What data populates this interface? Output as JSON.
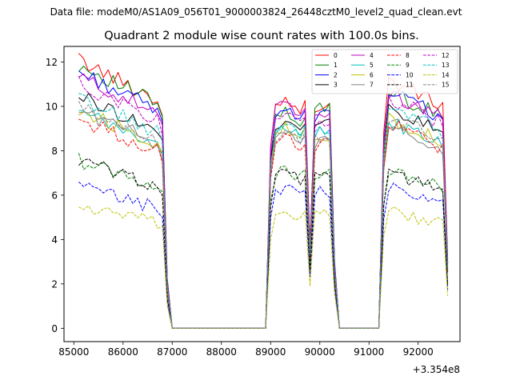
{
  "header": {
    "data_file": "Data file: modeM0/AS1A09_056T01_9000003824_26448cztM0_level2_quad_clean.evt"
  },
  "chart_data": {
    "type": "line",
    "title": "Quadrant 2 module wise count rates with 100.0s bins.",
    "xlabel": "",
    "ylabel": "",
    "x_offset_label": "+3.354e8",
    "xlim": [
      84800,
      92850
    ],
    "ylim": [
      -0.6,
      12.7
    ],
    "x_ticks": [
      85000,
      86000,
      87000,
      88000,
      89000,
      90000,
      91000,
      92000
    ],
    "y_ticks": [
      0,
      2,
      4,
      6,
      8,
      10,
      12
    ],
    "x_tick_labels": [
      "85000",
      "86000",
      "87000",
      "88000",
      "89000",
      "90000",
      "91000",
      "92000"
    ],
    "y_tick_labels": [
      "0",
      "2",
      "4",
      "6",
      "8",
      "10",
      "12"
    ],
    "grid": false,
    "legend": {
      "placement": "top-right",
      "columns": 4
    },
    "x_start": 85100,
    "x_step": 100,
    "n_points": 76,
    "series": [
      {
        "name": "0",
        "color": "#ff0000",
        "dash": "solid",
        "seg1": 11.2,
        "seg2": 10.0,
        "seg3": 10.1,
        "seg4": 10.4
      },
      {
        "name": "1",
        "color": "#008000",
        "dash": "solid",
        "seg1": 11.0,
        "seg2": 9.4,
        "seg3": 9.9,
        "seg4": 9.9
      },
      {
        "name": "2",
        "color": "#0000ff",
        "dash": "solid",
        "seg1": 10.7,
        "seg2": 9.5,
        "seg3": 9.8,
        "seg4": 9.9
      },
      {
        "name": "3",
        "color": "#000000",
        "dash": "solid",
        "seg1": 9.7,
        "seg2": 9.1,
        "seg3": 9.2,
        "seg4": 9.2
      },
      {
        "name": "4",
        "color": "#bf00bf",
        "dash": "solid",
        "seg1": 10.5,
        "seg2": 9.8,
        "seg3": 9.6,
        "seg4": 9.8
      },
      {
        "name": "5",
        "color": "#00bfbf",
        "dash": "solid",
        "seg1": 9.0,
        "seg2": 8.8,
        "seg3": 8.9,
        "seg4": 8.6
      },
      {
        "name": "6",
        "color": "#bfbf00",
        "dash": "solid",
        "seg1": 9.1,
        "seg2": 8.7,
        "seg3": 8.6,
        "seg4": 8.8
      },
      {
        "name": "7",
        "color": "#808080",
        "dash": "solid",
        "seg1": 9.1,
        "seg2": 8.5,
        "seg3": 8.4,
        "seg4": 8.4
      },
      {
        "name": "8",
        "color": "#ff0000",
        "dash": "dashed",
        "seg1": 8.7,
        "seg2": 8.3,
        "seg3": 8.3,
        "seg4": 8.5
      },
      {
        "name": "9",
        "color": "#008000",
        "dash": "dashed",
        "seg1": 7.0,
        "seg2": 6.9,
        "seg3": 7.0,
        "seg4": 6.6
      },
      {
        "name": "10",
        "color": "#0000ff",
        "dash": "dashed",
        "seg1": 5.9,
        "seg2": 6.1,
        "seg3": 6.1,
        "seg4": 5.8
      },
      {
        "name": "11",
        "color": "#000000",
        "dash": "dashed",
        "seg1": 7.0,
        "seg2": 6.8,
        "seg3": 6.9,
        "seg4": 6.5
      },
      {
        "name": "12",
        "color": "#bf00bf",
        "dash": "dashed",
        "seg1": 10.2,
        "seg2": 9.3,
        "seg3": 9.4,
        "seg4": 9.6
      },
      {
        "name": "13",
        "color": "#00bfbf",
        "dash": "dashed",
        "seg1": 9.6,
        "seg2": 8.9,
        "seg3": 9.0,
        "seg4": 9.2
      },
      {
        "name": "14",
        "color": "#bfbf00",
        "dash": "dashed",
        "seg1": 5.1,
        "seg2": 5.0,
        "seg3": 5.2,
        "seg4": 4.9
      },
      {
        "name": "15",
        "color": "#808080",
        "dash": "dashed",
        "seg1": 9.2,
        "seg2": 8.6,
        "seg3": 8.7,
        "seg4": 8.8
      }
    ]
  }
}
